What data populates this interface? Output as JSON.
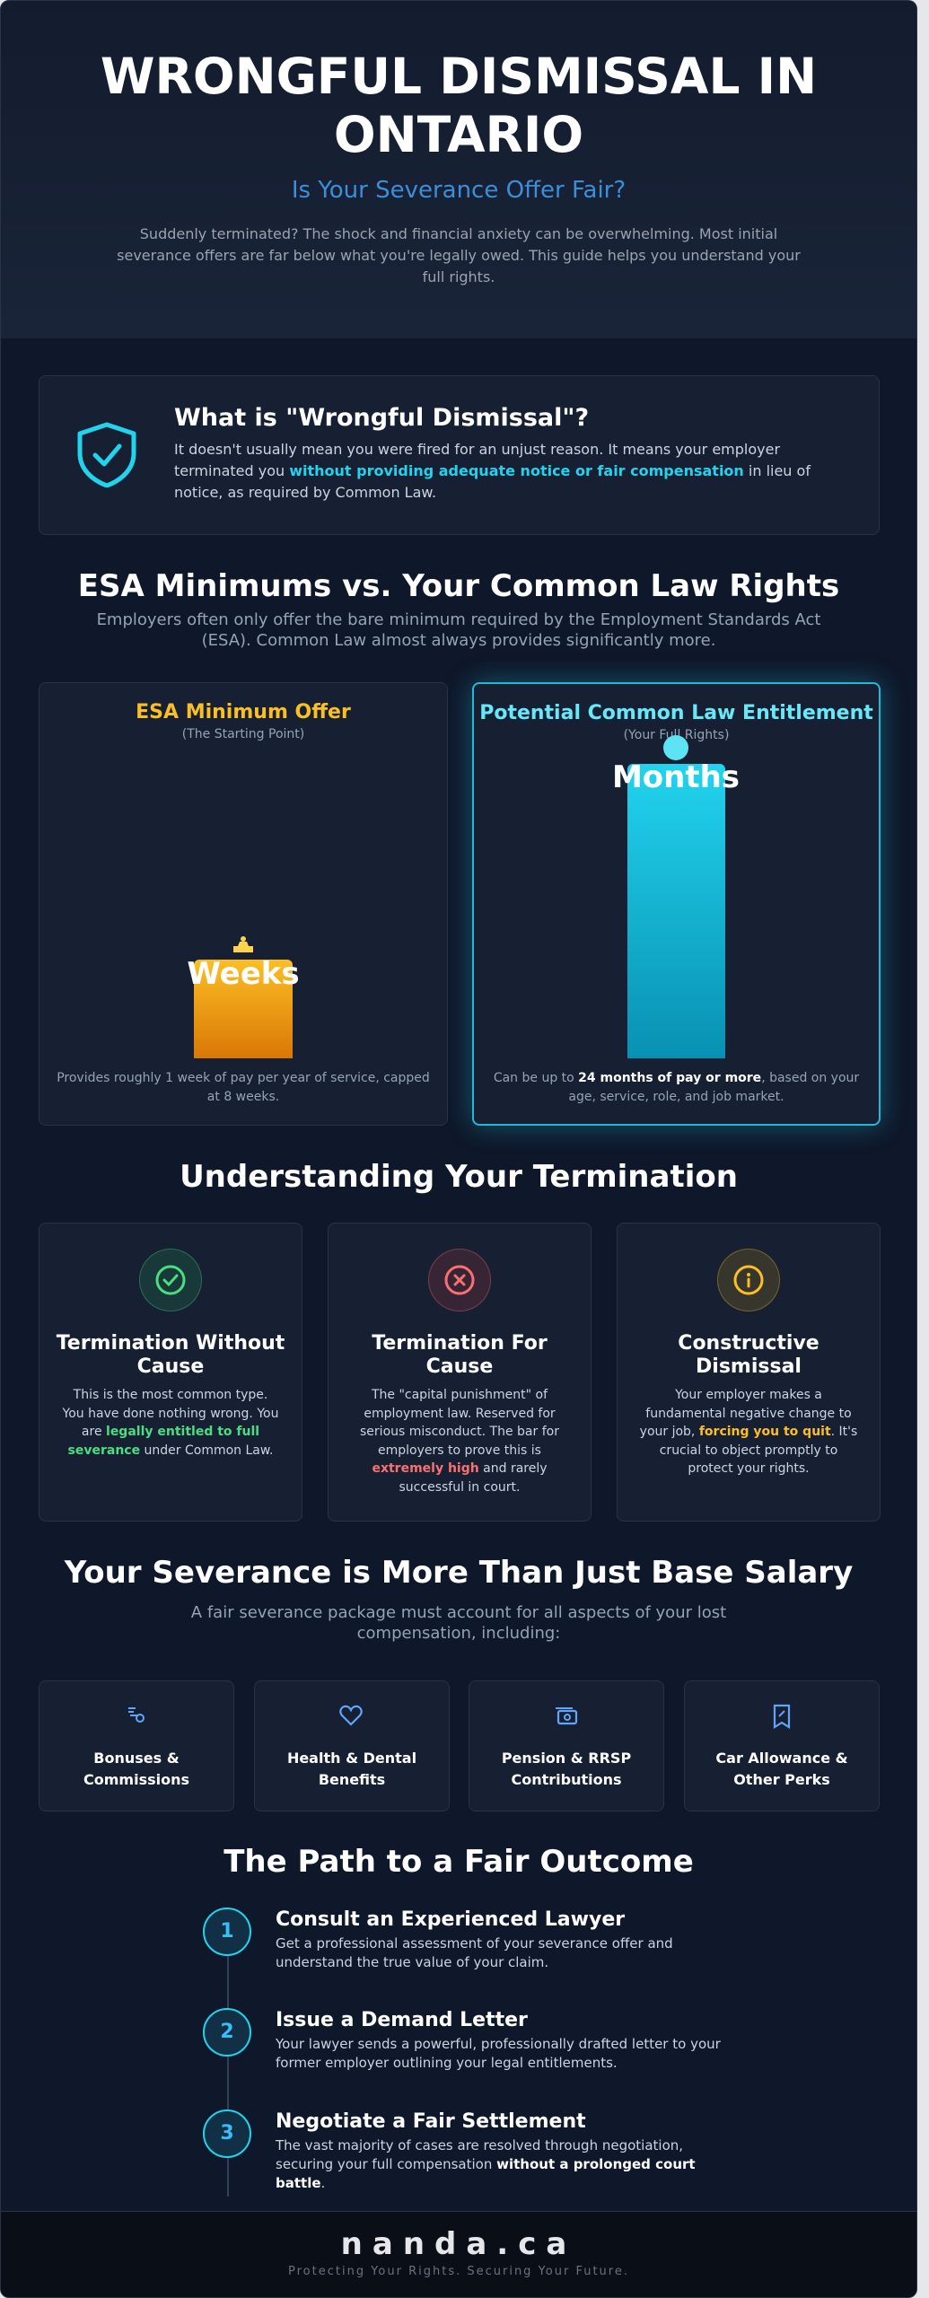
{
  "header": {
    "title": "WRONGFUL DISMISSAL IN ONTARIO",
    "subtitle": "Is Your Severance Offer Fair?",
    "intro": "Suddenly terminated? The shock and financial anxiety can be overwhelming. Most initial severance offers are far below what you're legally owed. This guide helps you understand your full rights."
  },
  "definition": {
    "title": "What is \"Wrongful Dismissal\"?",
    "text": [
      "It doesn't usually mean you were fired for an unjust reason. It means your employer terminated you ",
      "without providing adequate notice or fair compensation",
      " in lieu of notice, as required by Common Law."
    ]
  },
  "comparison": {
    "title": "ESA Minimums vs. Your Common Law Rights",
    "subtitle": "Employers often only offer the bare minimum required by the Employment Standards Act (ESA). Common Law almost always provides significantly more.",
    "esa": {
      "title": "ESA Minimum Offer",
      "subtitle": "(The Starting Point)",
      "bar_label": "Weeks",
      "note": [
        "Provides roughly 1 week of pay per year of service, capped at 8 weeks."
      ]
    },
    "common_law": {
      "title": "Potential Common Law Entitlement",
      "subtitle": "(Your Full Rights)",
      "bar_label": "Months",
      "note": [
        "Can be up to ",
        "24 months of pay or more",
        ", based on your age, service, role, and job market."
      ]
    }
  },
  "termination": {
    "title": "Understanding Your Termination",
    "cards": [
      {
        "title": "Termination Without Cause",
        "text": [
          "This is the most common type. You have done nothing wrong. You are ",
          "legally entitled to full severance",
          " under Common Law."
        ]
      },
      {
        "title": "Termination For Cause",
        "text": [
          "The \"capital punishment\" of employment law. Reserved for serious misconduct. The bar for employers to prove this is ",
          "extremely high",
          " and rarely successful in court."
        ]
      },
      {
        "title": "Constructive Dismissal",
        "text": [
          "Your employer makes a fundamental negative change to your job, ",
          "forcing you to quit",
          ". It's crucial to object promptly to protect your rights."
        ]
      }
    ]
  },
  "severance": {
    "title": "Your Severance is More Than Just Base Salary",
    "subtitle": "A fair severance package must account for all aspects of your lost compensation, including:",
    "items": [
      "Bonuses & Commissions",
      "Health & Dental Benefits",
      "Pension & RRSP Contributions",
      "Car Allowance & Other Perks"
    ]
  },
  "path": {
    "title": "The Path to a Fair Outcome",
    "steps": [
      {
        "number": "1",
        "title": "Consult an Experienced Lawyer",
        "text": [
          "Get a professional assessment of your severance offer and understand the true value of your claim."
        ]
      },
      {
        "number": "2",
        "title": "Issue a Demand Letter",
        "text": [
          "Your lawyer sends a powerful, professionally drafted letter to your former employer outlining your legal entitlements."
        ]
      },
      {
        "number": "3",
        "title": "Negotiate a Fair Settlement",
        "text": [
          "The vast majority of cases are resolved through negotiation, securing your full compensation ",
          "without a prolonged court battle",
          "."
        ]
      }
    ]
  },
  "footer": {
    "brand": "nanda.ca",
    "tagline": "Protecting Your Rights. Securing Your Future."
  }
}
